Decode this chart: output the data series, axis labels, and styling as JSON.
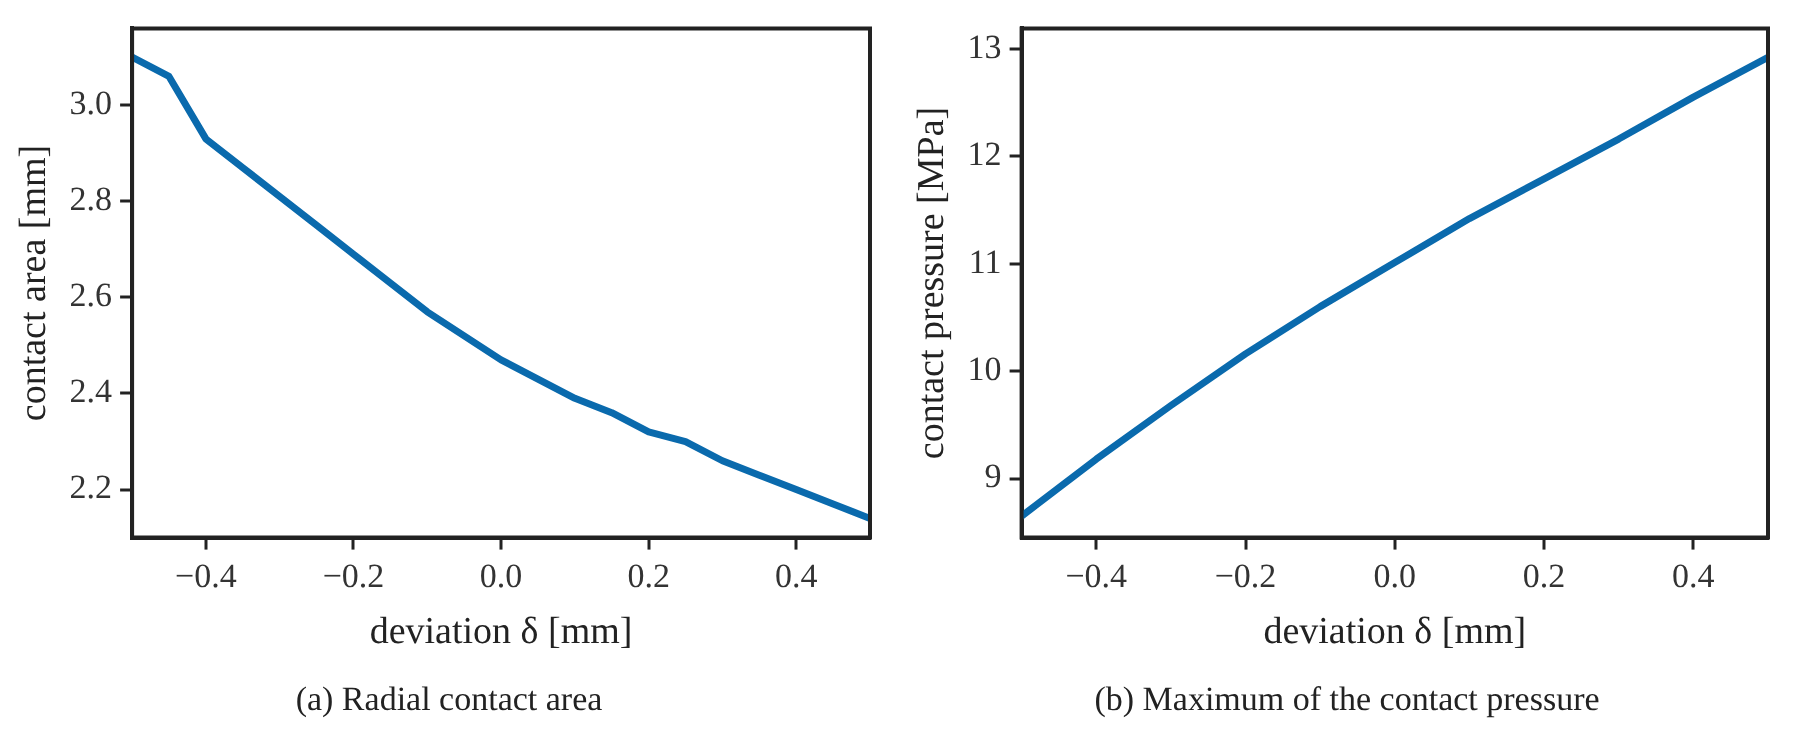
{
  "chart_data": [
    {
      "type": "line",
      "title": "(a) Radial contact area",
      "xlabel": "deviation δ [mm]",
      "ylabel": "contact area [mm]",
      "xlim": [
        -0.5,
        0.5
      ],
      "ylim": [
        2.1,
        3.16
      ],
      "xticks": [
        {
          "value": -0.4,
          "label": "−0.4"
        },
        {
          "value": -0.2,
          "label": "−0.2"
        },
        {
          "value": 0,
          "label": "0.0"
        },
        {
          "value": 0.2,
          "label": "0.2"
        },
        {
          "value": 0.4,
          "label": "0.4"
        }
      ],
      "yticks": [
        {
          "value": 2.2,
          "label": "2.2"
        },
        {
          "value": 2.4,
          "label": "2.4"
        },
        {
          "value": 2.6,
          "label": "2.6"
        },
        {
          "value": 2.8,
          "label": "2.8"
        },
        {
          "value": 3.0,
          "label": "3.0"
        }
      ],
      "grid": false,
      "legend": false,
      "marker": "none",
      "line_style": "solid",
      "x": [
        -0.5,
        -0.45,
        -0.4,
        -0.35,
        -0.3,
        -0.25,
        -0.2,
        -0.15,
        -0.1,
        -0.05,
        0,
        0.05,
        0.1,
        0.15,
        0.2,
        0.25,
        0.3,
        0.35,
        0.4,
        0.45,
        0.5
      ],
      "series": [
        {
          "color": "#0a6aad",
          "values": [
            3.1,
            3.06,
            2.93,
            2.87,
            2.81,
            2.75,
            2.69,
            2.63,
            2.57,
            2.52,
            2.47,
            2.43,
            2.39,
            2.36,
            2.32,
            2.3,
            2.26,
            2.23,
            2.2,
            2.17,
            2.14
          ]
        }
      ]
    },
    {
      "type": "line",
      "title": "(b) Maximum of the contact pressure",
      "xlabel": "deviation δ [mm]",
      "ylabel": "contact pressure [MPa]",
      "xlim": [
        -0.5,
        0.5
      ],
      "ylim": [
        8.45,
        13.19
      ],
      "xticks": [
        {
          "value": -0.4,
          "label": "−0.4"
        },
        {
          "value": -0.2,
          "label": "−0.2"
        },
        {
          "value": 0,
          "label": "0.0"
        },
        {
          "value": 0.2,
          "label": "0.2"
        },
        {
          "value": 0.4,
          "label": "0.4"
        }
      ],
      "yticks": [
        9,
        10,
        11,
        12,
        13
      ],
      "grid": false,
      "legend": false,
      "marker": "none",
      "line_style": "solid",
      "x": [
        -0.5,
        -0.4,
        -0.3,
        -0.2,
        -0.1,
        0,
        0.1,
        0.2,
        0.3,
        0.4,
        0.5
      ],
      "series": [
        {
          "color": "#0a6aad",
          "values": [
            8.65,
            9.18,
            9.68,
            10.16,
            10.6,
            11.01,
            11.42,
            11.79,
            12.16,
            12.55,
            12.92
          ]
        }
      ]
    }
  ]
}
